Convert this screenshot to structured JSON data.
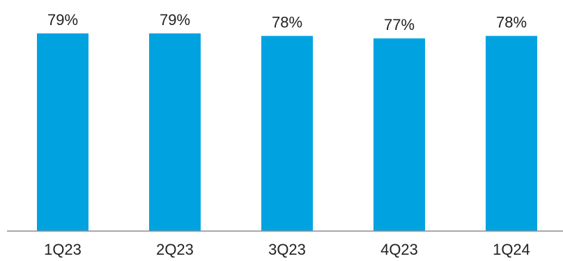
{
  "chart_data": {
    "type": "bar",
    "categories": [
      "1Q23",
      "2Q23",
      "3Q23",
      "4Q23",
      "1Q24"
    ],
    "values": [
      79,
      79,
      78,
      77,
      78
    ],
    "data_labels": [
      "79%",
      "79%",
      "78%",
      "77%",
      "78%"
    ],
    "title": "",
    "xlabel": "",
    "ylabel": "",
    "ylim": [
      0,
      100
    ],
    "grid": false,
    "legend": "none",
    "colors": {
      "bar": "#00A3E0",
      "axis": "#8C8C8C"
    }
  }
}
